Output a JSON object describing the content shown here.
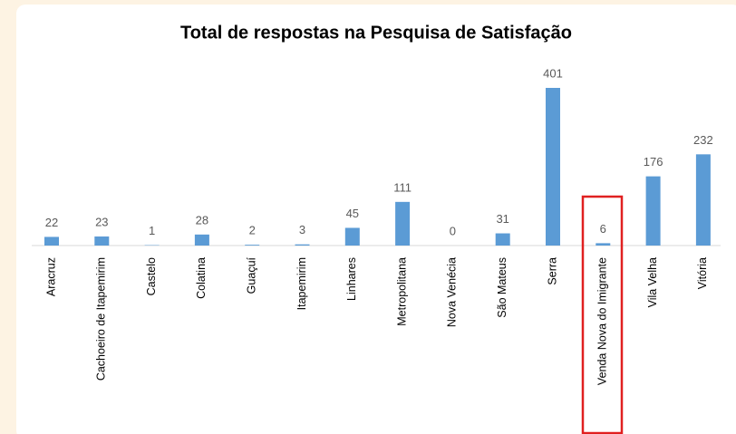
{
  "chart_data": {
    "type": "bar",
    "title": "Total de respostas na Pesquisa de Satisfação",
    "categories": [
      "Aracruz",
      "Cachoeiro de Itapemirim",
      "Castelo",
      "Colatina",
      "Guaçuí",
      "Itapemirim",
      "Linhares",
      "Metropolitana",
      "Nova Venécia",
      "São Mateus",
      "Serra",
      "Venda Nova do Imigrante",
      "Vila Velha",
      "Vitória"
    ],
    "values": [
      22,
      23,
      1,
      28,
      2,
      3,
      45,
      111,
      0,
      31,
      401,
      6,
      176,
      232
    ],
    "color": "#5b9bd5"
  }
}
